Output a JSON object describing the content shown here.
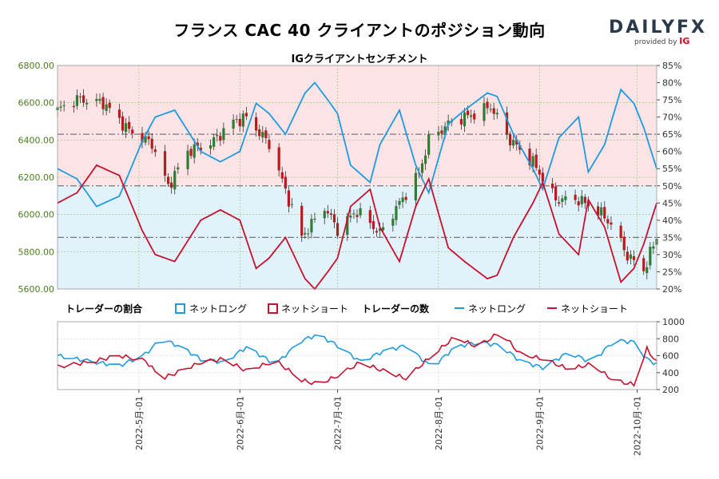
{
  "header": {
    "title": "フランス CAC 40 クライアントのポジション動向",
    "subtitle": "IGクライアントセンチメント",
    "logo_main": "DAILYFX",
    "logo_sub": "provided by",
    "logo_ig": "IG"
  },
  "legend": {
    "ratio_title": "トレーダーの割合",
    "ratio_long": "ネットロング",
    "ratio_short": "ネットショート",
    "count_title": "トレーダーの数",
    "count_long": "ネットロング",
    "count_short": "ネットショート"
  },
  "colors": {
    "long": "#1e9be0",
    "short": "#c8102e",
    "up_candle": "#2e7d32",
    "down_candle": "#b71c1c",
    "upper_fill": "#fbe3e6",
    "lower_fill": "#e2f2fb",
    "left_axis_text": "#4a7d1e",
    "grid": "#8fbf5a"
  },
  "chart_data": [
    {
      "type": "candlestick+line",
      "title": "IGクライアントセンチメント",
      "y_left": {
        "lim": [
          5600,
          6800
        ],
        "ticks": [
          "5600.00",
          "5800.00",
          "6000.00",
          "6200.00",
          "6400.00",
          "6600.00",
          "6800.00"
        ]
      },
      "y_right": {
        "lim": [
          20,
          85
        ],
        "ticks": [
          "20%",
          "25%",
          "30%",
          "35%",
          "40%",
          "45%",
          "50%",
          "55%",
          "60%",
          "65%",
          "70%",
          "75%",
          "80%",
          "85%"
        ]
      },
      "x_ticks": [
        "2022-5月-01",
        "2022-6月-01",
        "2022-7月-01",
        "2022-8月-01",
        "2022-9月-01",
        "2022-10月-01"
      ],
      "x_range": [
        "2022-04-06",
        "2022-10-07"
      ],
      "reference_levels_pct": [
        65,
        50,
        35
      ],
      "price_close_keypoints": [
        [
          "2022-04-06",
          6560
        ],
        [
          "2022-04-12",
          6620
        ],
        [
          "2022-04-20",
          6600
        ],
        [
          "2022-04-28",
          6450
        ],
        [
          "2022-05-05",
          6380
        ],
        [
          "2022-05-10",
          6150
        ],
        [
          "2022-05-16",
          6340
        ],
        [
          "2022-05-23",
          6380
        ],
        [
          "2022-05-30",
          6500
        ],
        [
          "2022-06-03",
          6520
        ],
        [
          "2022-06-10",
          6380
        ],
        [
          "2022-06-14",
          6180
        ],
        [
          "2022-06-20",
          5880
        ],
        [
          "2022-06-27",
          6040
        ],
        [
          "2022-07-01",
          5920
        ],
        [
          "2022-07-07",
          6020
        ],
        [
          "2022-07-14",
          5900
        ],
        [
          "2022-07-20",
          6060
        ],
        [
          "2022-07-26",
          6220
        ],
        [
          "2022-07-29",
          6400
        ],
        [
          "2022-08-05",
          6500
        ],
        [
          "2022-08-12",
          6540
        ],
        [
          "2022-08-17",
          6580
        ],
        [
          "2022-08-23",
          6400
        ],
        [
          "2022-08-30",
          6280
        ],
        [
          "2022-09-06",
          6080
        ],
        [
          "2022-09-13",
          6080
        ],
        [
          "2022-09-19",
          6020
        ],
        [
          "2022-09-23",
          5950
        ],
        [
          "2022-09-28",
          5780
        ],
        [
          "2022-10-03",
          5700
        ],
        [
          "2022-10-07",
          5880
        ]
      ],
      "long_pct_keypoints": [
        [
          "2022-04-06",
          55
        ],
        [
          "2022-04-12",
          52
        ],
        [
          "2022-04-18",
          44
        ],
        [
          "2022-04-25",
          47
        ],
        [
          "2022-05-02",
          63
        ],
        [
          "2022-05-06",
          70
        ],
        [
          "2022-05-12",
          72
        ],
        [
          "2022-05-16",
          66
        ],
        [
          "2022-05-20",
          60
        ],
        [
          "2022-05-26",
          57
        ],
        [
          "2022-06-01",
          60
        ],
        [
          "2022-06-06",
          74
        ],
        [
          "2022-06-10",
          71
        ],
        [
          "2022-06-15",
          65
        ],
        [
          "2022-06-21",
          77
        ],
        [
          "2022-06-24",
          80
        ],
        [
          "2022-06-28",
          75
        ],
        [
          "2022-07-01",
          71
        ],
        [
          "2022-07-05",
          56
        ],
        [
          "2022-07-11",
          51
        ],
        [
          "2022-07-14",
          62
        ],
        [
          "2022-07-20",
          72
        ],
        [
          "2022-07-25",
          56
        ],
        [
          "2022-07-29",
          48
        ],
        [
          "2022-08-04",
          68
        ],
        [
          "2022-08-09",
          72
        ],
        [
          "2022-08-16",
          77
        ],
        [
          "2022-08-19",
          76
        ],
        [
          "2022-08-24",
          65
        ],
        [
          "2022-08-30",
          55
        ],
        [
          "2022-09-02",
          49
        ],
        [
          "2022-09-07",
          64
        ],
        [
          "2022-09-13",
          70
        ],
        [
          "2022-09-16",
          54
        ],
        [
          "2022-09-21",
          62
        ],
        [
          "2022-09-26",
          78
        ],
        [
          "2022-09-30",
          74
        ],
        [
          "2022-10-03",
          67
        ],
        [
          "2022-10-07",
          55
        ]
      ],
      "short_pct_keypoints": [
        [
          "2022-04-06",
          45
        ],
        [
          "2022-04-12",
          48
        ],
        [
          "2022-04-18",
          56
        ],
        [
          "2022-04-25",
          53
        ],
        [
          "2022-05-02",
          37
        ],
        [
          "2022-05-06",
          30
        ],
        [
          "2022-05-12",
          28
        ],
        [
          "2022-05-16",
          34
        ],
        [
          "2022-05-20",
          40
        ],
        [
          "2022-05-26",
          43
        ],
        [
          "2022-06-01",
          40
        ],
        [
          "2022-06-06",
          26
        ],
        [
          "2022-06-10",
          29
        ],
        [
          "2022-06-15",
          35
        ],
        [
          "2022-06-21",
          23
        ],
        [
          "2022-06-24",
          20
        ],
        [
          "2022-06-28",
          25
        ],
        [
          "2022-07-01",
          29
        ],
        [
          "2022-07-05",
          44
        ],
        [
          "2022-07-11",
          49
        ],
        [
          "2022-07-14",
          38
        ],
        [
          "2022-07-20",
          28
        ],
        [
          "2022-07-25",
          44
        ],
        [
          "2022-07-29",
          52
        ],
        [
          "2022-08-04",
          32
        ],
        [
          "2022-08-09",
          28
        ],
        [
          "2022-08-16",
          23
        ],
        [
          "2022-08-19",
          24
        ],
        [
          "2022-08-24",
          35
        ],
        [
          "2022-08-30",
          45
        ],
        [
          "2022-09-02",
          51
        ],
        [
          "2022-09-07",
          36
        ],
        [
          "2022-09-13",
          30
        ],
        [
          "2022-09-16",
          46
        ],
        [
          "2022-09-21",
          38
        ],
        [
          "2022-09-26",
          22
        ],
        [
          "2022-09-30",
          26
        ],
        [
          "2022-10-03",
          33
        ],
        [
          "2022-10-07",
          45
        ]
      ]
    },
    {
      "type": "line",
      "title": "トレーダーの数",
      "y_lim": [
        200,
        1000
      ],
      "y_ticks": [
        "200",
        "400",
        "600",
        "800",
        "1000"
      ],
      "x_range": [
        "2022-04-06",
        "2022-10-07"
      ],
      "series": [
        {
          "name": "ネットロング",
          "keypoints": [
            [
              "2022-04-06",
              600
            ],
            [
              "2022-04-15",
              540
            ],
            [
              "2022-04-25",
              480
            ],
            [
              "2022-05-03",
              620
            ],
            [
              "2022-05-08",
              800
            ],
            [
              "2022-05-14",
              700
            ],
            [
              "2022-05-20",
              560
            ],
            [
              "2022-05-27",
              520
            ],
            [
              "2022-06-03",
              700
            ],
            [
              "2022-06-12",
              500
            ],
            [
              "2022-06-20",
              780
            ],
            [
              "2022-06-25",
              850
            ],
            [
              "2022-07-01",
              720
            ],
            [
              "2022-07-08",
              530
            ],
            [
              "2022-07-15",
              650
            ],
            [
              "2022-07-22",
              720
            ],
            [
              "2022-07-30",
              460
            ],
            [
              "2022-08-06",
              700
            ],
            [
              "2022-08-13",
              760
            ],
            [
              "2022-08-20",
              720
            ],
            [
              "2022-08-26",
              540
            ],
            [
              "2022-09-02",
              460
            ],
            [
              "2022-09-10",
              640
            ],
            [
              "2022-09-17",
              520
            ],
            [
              "2022-09-24",
              780
            ],
            [
              "2022-09-30",
              760
            ],
            [
              "2022-10-04",
              560
            ],
            [
              "2022-10-07",
              500
            ]
          ]
        },
        {
          "name": "ネットショート",
          "keypoints": [
            [
              "2022-04-06",
              470
            ],
            [
              "2022-04-15",
              520
            ],
            [
              "2022-04-25",
              600
            ],
            [
              "2022-05-03",
              540
            ],
            [
              "2022-05-08",
              330
            ],
            [
              "2022-05-14",
              420
            ],
            [
              "2022-05-20",
              520
            ],
            [
              "2022-05-27",
              560
            ],
            [
              "2022-06-03",
              420
            ],
            [
              "2022-06-12",
              540
            ],
            [
              "2022-06-20",
              310
            ],
            [
              "2022-06-25",
              260
            ],
            [
              "2022-07-01",
              360
            ],
            [
              "2022-07-08",
              520
            ],
            [
              "2022-07-15",
              420
            ],
            [
              "2022-07-22",
              330
            ],
            [
              "2022-07-30",
              600
            ],
            [
              "2022-08-06",
              820
            ],
            [
              "2022-08-13",
              700
            ],
            [
              "2022-08-20",
              880
            ],
            [
              "2022-08-26",
              620
            ],
            [
              "2022-09-02",
              560
            ],
            [
              "2022-09-10",
              440
            ],
            [
              "2022-09-17",
              500
            ],
            [
              "2022-09-24",
              300
            ],
            [
              "2022-09-30",
              260
            ],
            [
              "2022-10-04",
              680
            ],
            [
              "2022-10-07",
              520
            ]
          ]
        }
      ]
    }
  ]
}
